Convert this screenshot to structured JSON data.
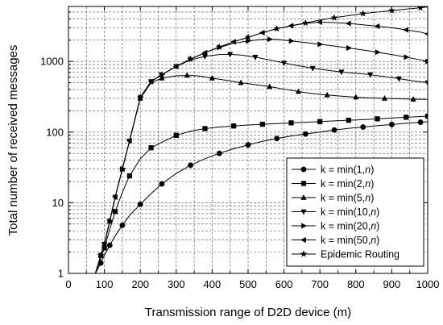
{
  "chart_data": {
    "type": "line",
    "xlabel": "Transmission range of D2D device (m)",
    "ylabel": "Total number of received messages",
    "xlim": [
      0,
      1000
    ],
    "ylim": [
      1,
      6000
    ],
    "yscale": "log",
    "x_ticks": [
      "0",
      "100",
      "200",
      "300",
      "400",
      "500",
      "600",
      "700",
      "800",
      "900",
      "1000"
    ],
    "y_ticks": [
      "1",
      "10",
      "100",
      "1000"
    ],
    "grid": true,
    "legend_position": "bottom-right",
    "series": [
      {
        "name": "k = min(1,n)",
        "marker": "circle",
        "x": [
          60,
          75,
          90,
          100,
          115,
          130,
          150,
          170,
          200,
          230,
          260,
          300,
          340,
          380,
          420,
          460,
          500,
          540,
          580,
          620,
          660,
          700,
          740,
          780,
          820,
          860,
          900,
          940,
          980,
          1000
        ],
        "y": [
          0.6,
          1.0,
          1.4,
          1.8,
          2.5,
          3.4,
          4.8,
          6.6,
          9.5,
          13.5,
          18.5,
          26,
          34,
          42,
          50,
          58,
          66,
          74,
          81,
          88,
          94,
          100,
          107,
          113,
          118,
          123,
          128,
          133,
          138,
          140
        ]
      },
      {
        "name": "k = min(2,n)",
        "marker": "square",
        "x": [
          60,
          75,
          90,
          100,
          115,
          130,
          150,
          170,
          200,
          230,
          260,
          300,
          340,
          380,
          420,
          460,
          500,
          540,
          580,
          620,
          660,
          700,
          740,
          780,
          820,
          860,
          900,
          940,
          980,
          1000
        ],
        "y": [
          0.6,
          1.0,
          1.6,
          2.3,
          4.2,
          7.5,
          14,
          24,
          42,
          60,
          72,
          90,
          103,
          112,
          118,
          122,
          126,
          129,
          132,
          135,
          138,
          141,
          144,
          147,
          150,
          154,
          158,
          162,
          166,
          168
        ]
      },
      {
        "name": "k = min(5,n)",
        "marker": "triangle-up",
        "x": [
          60,
          75,
          90,
          100,
          115,
          130,
          150,
          170,
          200,
          230,
          260,
          300,
          330,
          360,
          400,
          440,
          480,
          520,
          560,
          600,
          640,
          680,
          720,
          760,
          800,
          840,
          880,
          920,
          960,
          1000
        ],
        "y": [
          0.6,
          1.0,
          1.8,
          2.6,
          5.5,
          12,
          30,
          75,
          300,
          500,
          580,
          625,
          635,
          625,
          580,
          540,
          500,
          470,
          440,
          405,
          375,
          350,
          335,
          322,
          312,
          305,
          300,
          296,
          292,
          290
        ]
      },
      {
        "name": "k = min(10,n)",
        "marker": "triangle-down",
        "x": [
          60,
          75,
          90,
          100,
          115,
          130,
          150,
          170,
          200,
          230,
          260,
          300,
          340,
          380,
          420,
          450,
          480,
          520,
          560,
          600,
          640,
          680,
          720,
          760,
          800,
          840,
          880,
          920,
          960,
          1000
        ],
        "y": [
          0.6,
          1.0,
          1.8,
          2.6,
          5.5,
          12,
          30,
          75,
          310,
          520,
          650,
          850,
          1050,
          1180,
          1250,
          1260,
          1230,
          1150,
          1050,
          950,
          870,
          800,
          750,
          710,
          680,
          650,
          610,
          570,
          530,
          500
        ]
      },
      {
        "name": "k = min(20,n)",
        "marker": "triangle-right",
        "x": [
          60,
          75,
          90,
          100,
          115,
          130,
          150,
          170,
          200,
          230,
          260,
          300,
          340,
          380,
          420,
          460,
          500,
          540,
          560,
          580,
          620,
          660,
          700,
          740,
          780,
          820,
          860,
          900,
          940,
          980,
          1000
        ],
        "y": [
          0.6,
          1.0,
          1.8,
          2.6,
          5.5,
          12,
          30,
          75,
          310,
          520,
          650,
          850,
          1080,
          1330,
          1580,
          1800,
          1950,
          2050,
          2060,
          2050,
          1950,
          1850,
          1750,
          1650,
          1550,
          1450,
          1350,
          1250,
          1150,
          1050,
          1000
        ]
      },
      {
        "name": "k = min(50,n)",
        "marker": "triangle-left",
        "x": [
          60,
          75,
          90,
          100,
          115,
          130,
          150,
          170,
          200,
          230,
          260,
          300,
          340,
          380,
          420,
          460,
          500,
          540,
          580,
          620,
          660,
          700,
          740,
          780,
          820,
          860,
          900,
          940,
          980,
          1000
        ],
        "y": [
          0.6,
          1.0,
          1.8,
          2.6,
          5.5,
          12,
          30,
          75,
          310,
          520,
          650,
          850,
          1080,
          1330,
          1600,
          1900,
          2200,
          2550,
          2900,
          3200,
          3450,
          3600,
          3550,
          3450,
          3300,
          3150,
          3000,
          2800,
          2600,
          2450
        ]
      },
      {
        "name": "Epidemic Routing",
        "marker": "star",
        "x": [
          60,
          75,
          90,
          100,
          115,
          130,
          150,
          170,
          200,
          230,
          260,
          300,
          340,
          380,
          420,
          460,
          500,
          540,
          580,
          620,
          660,
          700,
          740,
          780,
          820,
          860,
          900,
          940,
          980,
          1000
        ],
        "y": [
          0.6,
          1.0,
          1.8,
          2.6,
          5.5,
          12,
          30,
          75,
          310,
          520,
          650,
          850,
          1080,
          1330,
          1600,
          1900,
          2200,
          2550,
          2900,
          3200,
          3500,
          3850,
          4150,
          4450,
          4750,
          5000,
          5250,
          5500,
          5750,
          5900
        ]
      }
    ]
  }
}
